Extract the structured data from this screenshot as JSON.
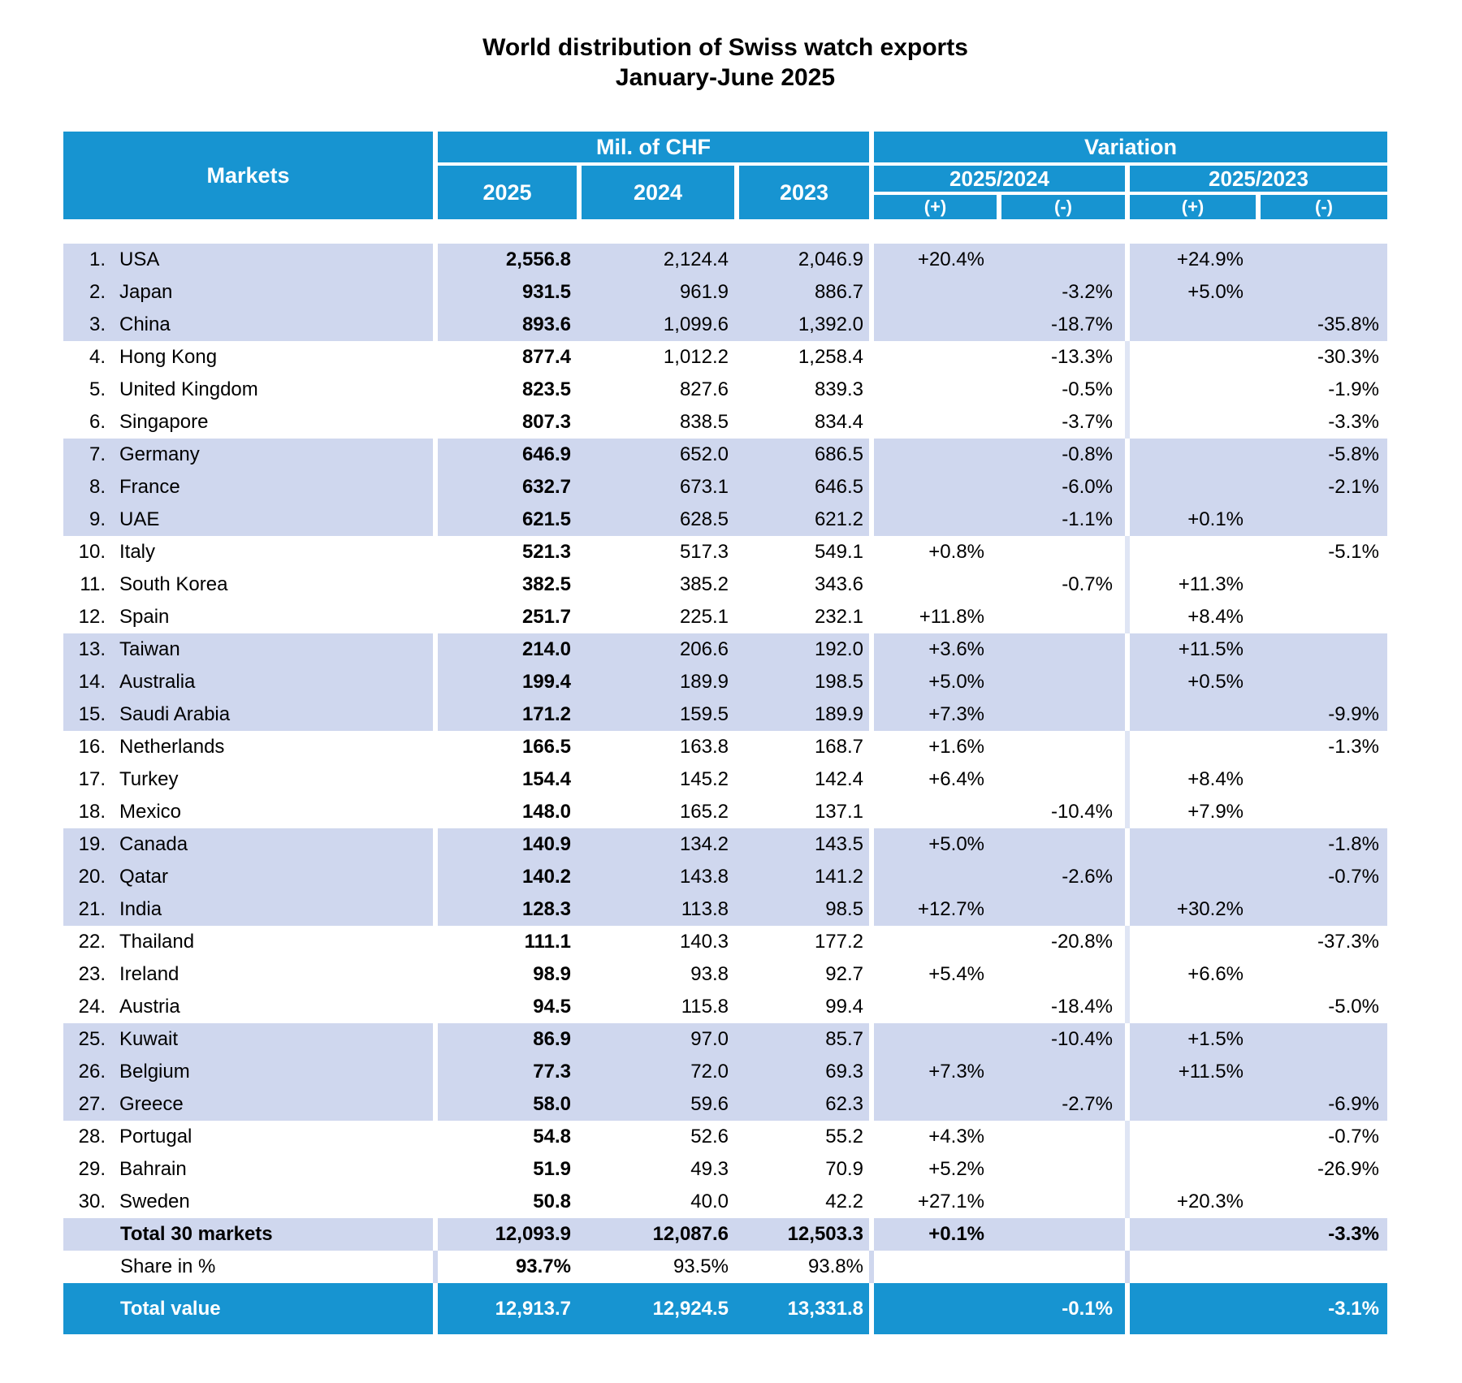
{
  "title": {
    "line1": "World distribution of Swiss watch exports",
    "line2": "January-June 2025"
  },
  "table": {
    "markets_label": "Markets",
    "chf_group_label": "Mil. of CHF",
    "variation_group_label": "Variation",
    "year_labels": [
      "2025",
      "2024",
      "2023"
    ],
    "variation_subgroups": [
      {
        "label": "2025/2024"
      },
      {
        "label": "2025/2023"
      }
    ],
    "plus_label": "(+)",
    "minus_label": "(-)"
  },
  "colors": {
    "header_blue": "#1794d1",
    "row_shade": "#cfd7ee",
    "light_separator": "#dfe5f4",
    "text_dark": "#000000",
    "text_light": "#ffffff"
  },
  "chart_data": {
    "type": "table",
    "title": "World distribution of Swiss watch exports",
    "subtitle": "January-June 2025",
    "unit": "Mil. of CHF",
    "columns": [
      "Markets",
      "2025",
      "2024",
      "2023",
      "Variation 2025/2024 (+)",
      "Variation 2025/2024 (-)",
      "Variation 2025/2023 (+)",
      "Variation 2025/2023 (-)"
    ],
    "markets": [
      {
        "rank": 1,
        "name": "USA",
        "chf_2025": "2,556.8",
        "chf_2024": "2,124.4",
        "chf_2023": "2,046.9",
        "var_2025_2024": "+20.4%",
        "var_2025_2023": "+24.9%"
      },
      {
        "rank": 2,
        "name": "Japan",
        "chf_2025": "931.5",
        "chf_2024": "961.9",
        "chf_2023": "886.7",
        "var_2025_2024": "-3.2%",
        "var_2025_2023": "+5.0%"
      },
      {
        "rank": 3,
        "name": "China",
        "chf_2025": "893.6",
        "chf_2024": "1,099.6",
        "chf_2023": "1,392.0",
        "var_2025_2024": "-18.7%",
        "var_2025_2023": "-35.8%"
      },
      {
        "rank": 4,
        "name": "Hong Kong",
        "chf_2025": "877.4",
        "chf_2024": "1,012.2",
        "chf_2023": "1,258.4",
        "var_2025_2024": "-13.3%",
        "var_2025_2023": "-30.3%"
      },
      {
        "rank": 5,
        "name": "United Kingdom",
        "chf_2025": "823.5",
        "chf_2024": "827.6",
        "chf_2023": "839.3",
        "var_2025_2024": "-0.5%",
        "var_2025_2023": "-1.9%"
      },
      {
        "rank": 6,
        "name": "Singapore",
        "chf_2025": "807.3",
        "chf_2024": "838.5",
        "chf_2023": "834.4",
        "var_2025_2024": "-3.7%",
        "var_2025_2023": "-3.3%"
      },
      {
        "rank": 7,
        "name": "Germany",
        "chf_2025": "646.9",
        "chf_2024": "652.0",
        "chf_2023": "686.5",
        "var_2025_2024": "-0.8%",
        "var_2025_2023": "-5.8%"
      },
      {
        "rank": 8,
        "name": "France",
        "chf_2025": "632.7",
        "chf_2024": "673.1",
        "chf_2023": "646.5",
        "var_2025_2024": "-6.0%",
        "var_2025_2023": "-2.1%"
      },
      {
        "rank": 9,
        "name": "UAE",
        "chf_2025": "621.5",
        "chf_2024": "628.5",
        "chf_2023": "621.2",
        "var_2025_2024": "-1.1%",
        "var_2025_2023": "+0.1%"
      },
      {
        "rank": 10,
        "name": "Italy",
        "chf_2025": "521.3",
        "chf_2024": "517.3",
        "chf_2023": "549.1",
        "var_2025_2024": "+0.8%",
        "var_2025_2023": "-5.1%"
      },
      {
        "rank": 11,
        "name": "South Korea",
        "chf_2025": "382.5",
        "chf_2024": "385.2",
        "chf_2023": "343.6",
        "var_2025_2024": "-0.7%",
        "var_2025_2023": "+11.3%"
      },
      {
        "rank": 12,
        "name": "Spain",
        "chf_2025": "251.7",
        "chf_2024": "225.1",
        "chf_2023": "232.1",
        "var_2025_2024": "+11.8%",
        "var_2025_2023": "+8.4%"
      },
      {
        "rank": 13,
        "name": "Taiwan",
        "chf_2025": "214.0",
        "chf_2024": "206.6",
        "chf_2023": "192.0",
        "var_2025_2024": "+3.6%",
        "var_2025_2023": "+11.5%"
      },
      {
        "rank": 14,
        "name": "Australia",
        "chf_2025": "199.4",
        "chf_2024": "189.9",
        "chf_2023": "198.5",
        "var_2025_2024": "+5.0%",
        "var_2025_2023": "+0.5%"
      },
      {
        "rank": 15,
        "name": "Saudi Arabia",
        "chf_2025": "171.2",
        "chf_2024": "159.5",
        "chf_2023": "189.9",
        "var_2025_2024": "+7.3%",
        "var_2025_2023": "-9.9%"
      },
      {
        "rank": 16,
        "name": "Netherlands",
        "chf_2025": "166.5",
        "chf_2024": "163.8",
        "chf_2023": "168.7",
        "var_2025_2024": "+1.6%",
        "var_2025_2023": "-1.3%"
      },
      {
        "rank": 17,
        "name": "Turkey",
        "chf_2025": "154.4",
        "chf_2024": "145.2",
        "chf_2023": "142.4",
        "var_2025_2024": "+6.4%",
        "var_2025_2023": "+8.4%"
      },
      {
        "rank": 18,
        "name": "Mexico",
        "chf_2025": "148.0",
        "chf_2024": "165.2",
        "chf_2023": "137.1",
        "var_2025_2024": "-10.4%",
        "var_2025_2023": "+7.9%"
      },
      {
        "rank": 19,
        "name": "Canada",
        "chf_2025": "140.9",
        "chf_2024": "134.2",
        "chf_2023": "143.5",
        "var_2025_2024": "+5.0%",
        "var_2025_2023": "-1.8%"
      },
      {
        "rank": 20,
        "name": "Qatar",
        "chf_2025": "140.2",
        "chf_2024": "143.8",
        "chf_2023": "141.2",
        "var_2025_2024": "-2.6%",
        "var_2025_2023": "-0.7%"
      },
      {
        "rank": 21,
        "name": "India",
        "chf_2025": "128.3",
        "chf_2024": "113.8",
        "chf_2023": "98.5",
        "var_2025_2024": "+12.7%",
        "var_2025_2023": "+30.2%"
      },
      {
        "rank": 22,
        "name": "Thailand",
        "chf_2025": "111.1",
        "chf_2024": "140.3",
        "chf_2023": "177.2",
        "var_2025_2024": "-20.8%",
        "var_2025_2023": "-37.3%"
      },
      {
        "rank": 23,
        "name": "Ireland",
        "chf_2025": "98.9",
        "chf_2024": "93.8",
        "chf_2023": "92.7",
        "var_2025_2024": "+5.4%",
        "var_2025_2023": "+6.6%"
      },
      {
        "rank": 24,
        "name": "Austria",
        "chf_2025": "94.5",
        "chf_2024": "115.8",
        "chf_2023": "99.4",
        "var_2025_2024": "-18.4%",
        "var_2025_2023": "-5.0%"
      },
      {
        "rank": 25,
        "name": "Kuwait",
        "chf_2025": "86.9",
        "chf_2024": "97.0",
        "chf_2023": "85.7",
        "var_2025_2024": "-10.4%",
        "var_2025_2023": "+1.5%"
      },
      {
        "rank": 26,
        "name": "Belgium",
        "chf_2025": "77.3",
        "chf_2024": "72.0",
        "chf_2023": "69.3",
        "var_2025_2024": "+7.3%",
        "var_2025_2023": "+11.5%"
      },
      {
        "rank": 27,
        "name": "Greece",
        "chf_2025": "58.0",
        "chf_2024": "59.6",
        "chf_2023": "62.3",
        "var_2025_2024": "-2.7%",
        "var_2025_2023": "-6.9%"
      },
      {
        "rank": 28,
        "name": "Portugal",
        "chf_2025": "54.8",
        "chf_2024": "52.6",
        "chf_2023": "55.2",
        "var_2025_2024": "+4.3%",
        "var_2025_2023": "-0.7%"
      },
      {
        "rank": 29,
        "name": "Bahrain",
        "chf_2025": "51.9",
        "chf_2024": "49.3",
        "chf_2023": "70.9",
        "var_2025_2024": "+5.2%",
        "var_2025_2023": "-26.9%"
      },
      {
        "rank": 30,
        "name": "Sweden",
        "chf_2025": "50.8",
        "chf_2024": "40.0",
        "chf_2023": "42.2",
        "var_2025_2024": "+27.1%",
        "var_2025_2023": "+20.3%"
      }
    ],
    "total_30_markets": {
      "label": "Total 30 markets",
      "chf_2025": "12,093.9",
      "chf_2024": "12,087.6",
      "chf_2023": "12,503.3",
      "var_2025_2024": "+0.1%",
      "var_2025_2023": "-3.3%"
    },
    "share_in_percent": {
      "label": "Share in %",
      "chf_2025": "93.7%",
      "chf_2024": "93.5%",
      "chf_2023": "93.8%",
      "var_2025_2024": "",
      "var_2025_2023": ""
    },
    "total_value": {
      "label": "Total value",
      "chf_2025": "12,913.7",
      "chf_2024": "12,924.5",
      "chf_2023": "13,331.8",
      "var_2025_2024": "-0.1%",
      "var_2025_2023": "-3.1%"
    }
  }
}
